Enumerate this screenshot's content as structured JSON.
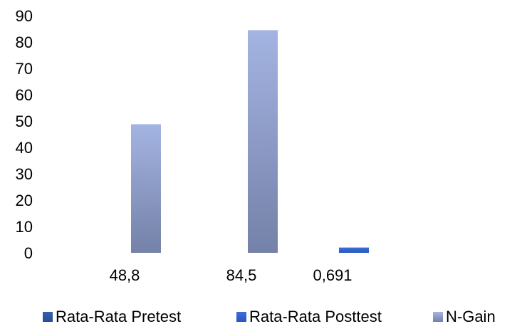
{
  "chart_data": {
    "type": "bar",
    "categories": [
      "48,8",
      "84,5",
      "0,691"
    ],
    "series": [
      {
        "name": "Rata-Rata Pretest",
        "values": [
          null,
          null,
          0.691
        ],
        "color": "#2F5BA8"
      },
      {
        "name": "Rata-Rata Posttest",
        "values": [
          null,
          null,
          2.0
        ],
        "color": "#2E5FCC"
      },
      {
        "name": "N-Gain",
        "values": [
          48.8,
          84.5,
          null
        ],
        "color": "#8C9BCB"
      }
    ],
    "ylim": [
      0,
      90
    ],
    "yticks": [
      0,
      10,
      20,
      30,
      40,
      50,
      60,
      70,
      80,
      90
    ],
    "grid": false,
    "legend_position": "bottom",
    "title": "",
    "xlabel": "",
    "ylabel": ""
  }
}
